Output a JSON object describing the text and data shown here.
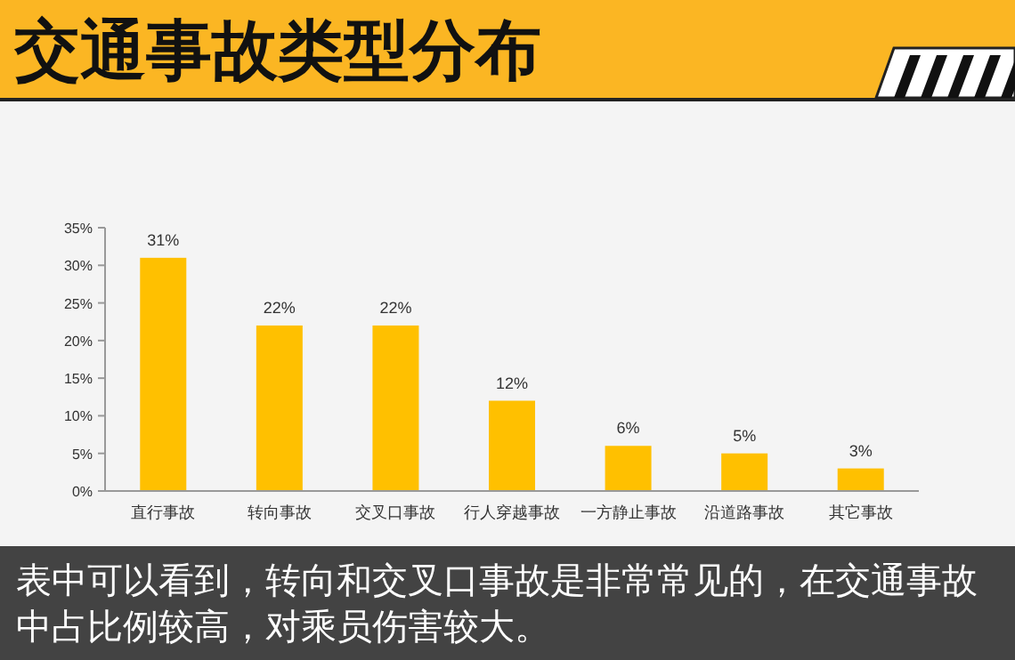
{
  "chart_data": {
    "type": "bar",
    "title": "交通事故类型分布",
    "categories": [
      "直行事故",
      "转向事故",
      "交叉口事故",
      "行人穿越事故",
      "一方静止事故",
      "沿道路事故",
      "其它事故"
    ],
    "values": [
      31,
      22,
      22,
      12,
      6,
      5,
      3
    ],
    "color": "#ffc000",
    "ylim": [
      0,
      35
    ],
    "yticks": [
      {
        "value": 0,
        "label": "0%"
      },
      {
        "value": 5,
        "label": "5%"
      },
      {
        "value": 10,
        "label": "10%"
      },
      {
        "value": 15,
        "label": "15%"
      },
      {
        "value": 20,
        "label": "20%"
      },
      {
        "value": 25,
        "label": "25%"
      },
      {
        "value": 30,
        "label": "30%"
      },
      {
        "value": 35,
        "label": "35%"
      }
    ],
    "data_labels": true,
    "value_labels": [
      "31%",
      "22%",
      "22%",
      "12%",
      "6%",
      "5%",
      "3%"
    ],
    "annotations": [
      "表中可以看到，转向和交叉口事故是非常常见的，在交通事故中占比例较高，对乘员伤害较大。"
    ]
  }
}
